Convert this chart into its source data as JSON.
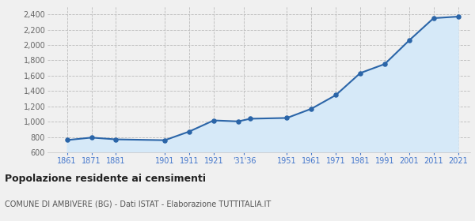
{
  "years": [
    1861,
    1871,
    1881,
    1901,
    1911,
    1921,
    1931,
    1936,
    1951,
    1961,
    1971,
    1981,
    1991,
    2001,
    2011,
    2021
  ],
  "population": [
    762,
    794,
    771,
    760,
    873,
    1018,
    1005,
    1040,
    1050,
    1170,
    1348,
    1635,
    1752,
    2060,
    2350,
    2370
  ],
  "line_color": "#2b65a8",
  "fill_color": "#d6e9f8",
  "marker_color": "#2b65a8",
  "grid_color": "#bbbbbb",
  "bg_color": "#f0f0f0",
  "plot_bg_color": "#f0f0f0",
  "title": "Popolazione residente ai censimenti",
  "subtitle": "COMUNE DI AMBIVERE (BG) - Dati ISTAT - Elaborazione TUTTITALIA.IT",
  "title_color": "#222222",
  "subtitle_color": "#555555",
  "tick_label_color": "#4477cc",
  "ytick_color": "#666666",
  "ylim": [
    600,
    2500
  ],
  "yticks": [
    600,
    800,
    1000,
    1200,
    1400,
    1600,
    1800,
    2000,
    2200,
    2400
  ],
  "x_tick_positions": [
    1861,
    1871,
    1881,
    1901,
    1911,
    1921,
    1933.5,
    1951,
    1961,
    1971,
    1981,
    1991,
    2001,
    2011,
    2021
  ],
  "x_tick_labels": [
    "1861",
    "1871",
    "1881",
    "1901",
    "1911",
    "1921",
    "'31'36",
    "1951",
    "1961",
    "1971",
    "1981",
    "1991",
    "2001",
    "2011",
    "2021"
  ],
  "xlim_left": 1853,
  "xlim_right": 2026
}
